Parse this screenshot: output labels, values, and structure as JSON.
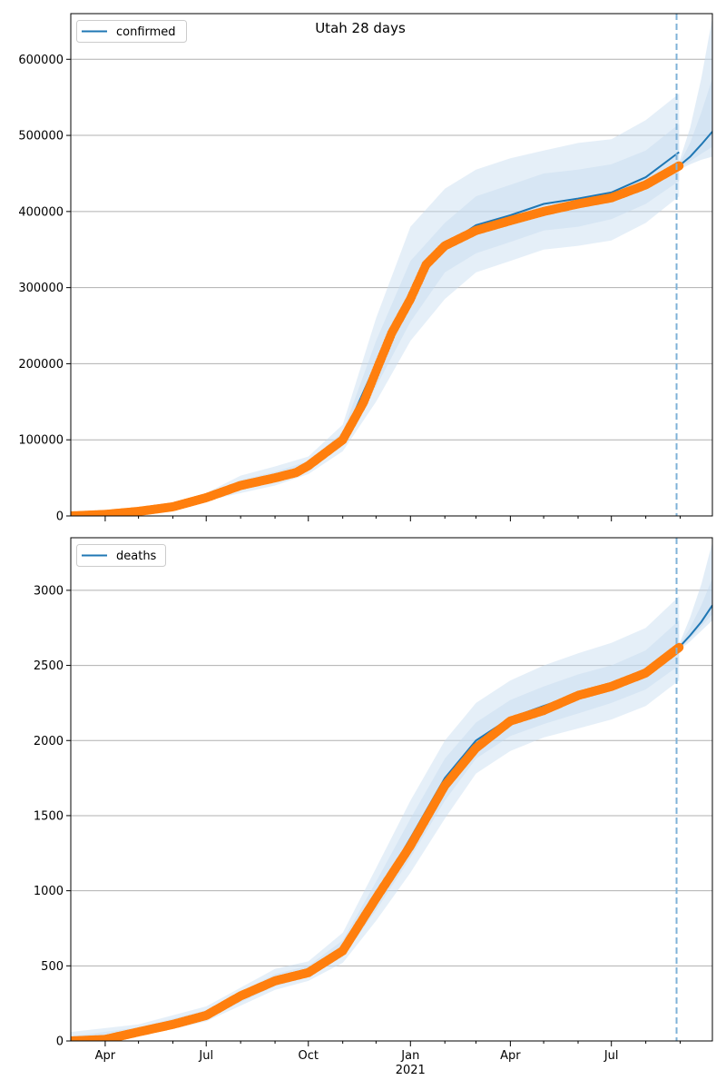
{
  "figure_title": "Utah 28 days",
  "colors": {
    "model_line": "#1f77b4",
    "observed": "#ff7f0e",
    "band": "#c6dbef",
    "grid": "#b0b0b0",
    "today_line": "#7fb2d8"
  },
  "chart_data": [
    {
      "type": "line",
      "legend": "confirmed",
      "legend_position": "top-left",
      "grid": "y",
      "x_tick_labels": [
        "Apr",
        "Jul",
        "Oct",
        "Jan",
        "Apr",
        "Jul"
      ],
      "x_year_label": "2021",
      "x_range": [
        "2020-03-01",
        "2021-09-30"
      ],
      "forecast_start": "2021-09-01",
      "ylim": [
        0,
        660000
      ],
      "yticks": [
        0,
        100000,
        200000,
        300000,
        400000,
        500000,
        600000
      ],
      "observed": [
        [
          "2020-03-01",
          0
        ],
        [
          "2020-04-01",
          2000
        ],
        [
          "2020-05-01",
          6000
        ],
        [
          "2020-06-01",
          12000
        ],
        [
          "2020-07-01",
          24000
        ],
        [
          "2020-08-01",
          40000
        ],
        [
          "2020-09-01",
          50000
        ],
        [
          "2020-09-20",
          57000
        ],
        [
          "2020-10-01",
          66000
        ],
        [
          "2020-11-01",
          100000
        ],
        [
          "2020-11-20",
          150000
        ],
        [
          "2020-12-01",
          190000
        ],
        [
          "2020-12-15",
          240000
        ],
        [
          "2021-01-01",
          285000
        ],
        [
          "2021-01-15",
          330000
        ],
        [
          "2021-02-01",
          355000
        ],
        [
          "2021-03-01",
          375000
        ],
        [
          "2021-04-01",
          388000
        ],
        [
          "2021-05-01",
          400000
        ],
        [
          "2021-06-01",
          410000
        ],
        [
          "2021-07-01",
          418000
        ],
        [
          "2021-08-01",
          435000
        ],
        [
          "2021-08-31",
          460000
        ]
      ],
      "model": [
        [
          "2020-03-01",
          0
        ],
        [
          "2020-04-01",
          2000
        ],
        [
          "2020-05-01",
          6000
        ],
        [
          "2020-06-01",
          13000
        ],
        [
          "2020-07-01",
          25000
        ],
        [
          "2020-08-01",
          40000
        ],
        [
          "2020-09-01",
          51000
        ],
        [
          "2020-10-01",
          66000
        ],
        [
          "2020-11-01",
          102000
        ],
        [
          "2020-12-01",
          200000
        ],
        [
          "2021-01-01",
          295000
        ],
        [
          "2021-02-01",
          355000
        ],
        [
          "2021-03-01",
          382000
        ],
        [
          "2021-04-01",
          395000
        ],
        [
          "2021-05-01",
          410000
        ],
        [
          "2021-06-01",
          417000
        ],
        [
          "2021-07-01",
          425000
        ],
        [
          "2021-08-01",
          445000
        ],
        [
          "2021-08-31",
          478000
        ]
      ],
      "forecast": [
        [
          "2021-08-31",
          460000
        ],
        [
          "2021-09-10",
          472000
        ],
        [
          "2021-09-20",
          488000
        ],
        [
          "2021-09-30",
          505000
        ]
      ],
      "bands": [
        {
          "upper": [
            [
              "2020-07-01",
              30000
            ],
            [
              "2020-08-01",
              53000
            ],
            [
              "2020-09-01",
              65000
            ],
            [
              "2020-10-01",
              78000
            ],
            [
              "2020-11-01",
              120000
            ],
            [
              "2020-12-01",
              260000
            ],
            [
              "2021-01-01",
              380000
            ],
            [
              "2021-02-01",
              430000
            ],
            [
              "2021-03-01",
              455000
            ],
            [
              "2021-04-01",
              470000
            ],
            [
              "2021-05-01",
              480000
            ],
            [
              "2021-06-01",
              490000
            ],
            [
              "2021-07-01",
              495000
            ],
            [
              "2021-08-01",
              520000
            ],
            [
              "2021-08-31",
              555000
            ]
          ],
          "lower": [
            [
              "2020-07-01",
              20000
            ],
            [
              "2020-08-01",
              30000
            ],
            [
              "2020-09-01",
              40000
            ],
            [
              "2020-10-01",
              55000
            ],
            [
              "2020-11-01",
              85000
            ],
            [
              "2020-12-01",
              150000
            ],
            [
              "2021-01-01",
              230000
            ],
            [
              "2021-02-01",
              285000
            ],
            [
              "2021-03-01",
              320000
            ],
            [
              "2021-04-01",
              335000
            ],
            [
              "2021-05-01",
              350000
            ],
            [
              "2021-06-01",
              355000
            ],
            [
              "2021-07-01",
              362000
            ],
            [
              "2021-08-01",
              385000
            ],
            [
              "2021-08-31",
              420000
            ]
          ]
        },
        {
          "upper": [
            [
              "2020-07-01",
              28000
            ],
            [
              "2020-08-01",
              47000
            ],
            [
              "2020-09-01",
              58000
            ],
            [
              "2020-10-01",
              72000
            ],
            [
              "2020-11-01",
              110000
            ],
            [
              "2020-12-01",
              230000
            ],
            [
              "2021-01-01",
              335000
            ],
            [
              "2021-02-01",
              385000
            ],
            [
              "2021-03-01",
              420000
            ],
            [
              "2021-04-01",
              435000
            ],
            [
              "2021-05-01",
              450000
            ],
            [
              "2021-06-01",
              455000
            ],
            [
              "2021-07-01",
              462000
            ],
            [
              "2021-08-01",
              480000
            ],
            [
              "2021-08-31",
              515000
            ]
          ],
          "lower": [
            [
              "2020-07-01",
              22000
            ],
            [
              "2020-08-01",
              35000
            ],
            [
              "2020-09-01",
              45000
            ],
            [
              "2020-10-01",
              60000
            ],
            [
              "2020-11-01",
              92000
            ],
            [
              "2020-12-01",
              170000
            ],
            [
              "2021-01-01",
              255000
            ],
            [
              "2021-02-01",
              320000
            ],
            [
              "2021-03-01",
              345000
            ],
            [
              "2021-04-01",
              360000
            ],
            [
              "2021-05-01",
              375000
            ],
            [
              "2021-06-01",
              380000
            ],
            [
              "2021-07-01",
              390000
            ],
            [
              "2021-08-01",
              410000
            ],
            [
              "2021-08-31",
              440000
            ]
          ]
        }
      ],
      "forecast_bands": [
        {
          "upper": [
            [
              "2021-08-31",
              465000
            ],
            [
              "2021-09-10",
              510000
            ],
            [
              "2021-09-20",
              575000
            ],
            [
              "2021-09-30",
              655000
            ]
          ],
          "lower": [
            [
              "2021-08-31",
              455000
            ],
            [
              "2021-09-10",
              462000
            ],
            [
              "2021-09-20",
              468000
            ],
            [
              "2021-09-30",
              472000
            ]
          ]
        },
        {
          "upper": [
            [
              "2021-08-31",
              462000
            ],
            [
              "2021-09-10",
              490000
            ],
            [
              "2021-09-20",
              530000
            ],
            [
              "2021-09-30",
              575000
            ]
          ],
          "lower": [
            [
              "2021-08-31",
              457000
            ],
            [
              "2021-09-10",
              466000
            ],
            [
              "2021-09-20",
              476000
            ],
            [
              "2021-09-30",
              485000
            ]
          ]
        }
      ]
    },
    {
      "type": "line",
      "legend": "deaths",
      "legend_position": "top-left",
      "grid": "y",
      "x_tick_labels": [
        "Apr",
        "Jul",
        "Oct",
        "Jan",
        "Apr",
        "Jul"
      ],
      "x_year_label": "2021",
      "x_range": [
        "2020-03-01",
        "2021-09-30"
      ],
      "forecast_start": "2021-09-01",
      "ylim": [
        0,
        3350
      ],
      "yticks": [
        0,
        500,
        1000,
        1500,
        2000,
        2500,
        3000
      ],
      "observed": [
        [
          "2020-03-01",
          0
        ],
        [
          "2020-04-01",
          10
        ],
        [
          "2020-05-01",
          60
        ],
        [
          "2020-06-01",
          110
        ],
        [
          "2020-07-01",
          170
        ],
        [
          "2020-08-01",
          300
        ],
        [
          "2020-09-01",
          400
        ],
        [
          "2020-10-01",
          455
        ],
        [
          "2020-11-01",
          600
        ],
        [
          "2020-12-01",
          950
        ],
        [
          "2021-01-01",
          1300
        ],
        [
          "2021-02-01",
          1700
        ],
        [
          "2021-03-01",
          1950
        ],
        [
          "2021-04-01",
          2130
        ],
        [
          "2021-05-01",
          2200
        ],
        [
          "2021-06-01",
          2300
        ],
        [
          "2021-07-01",
          2360
        ],
        [
          "2021-08-01",
          2450
        ],
        [
          "2021-08-31",
          2620
        ]
      ],
      "model": [
        [
          "2020-03-01",
          0
        ],
        [
          "2020-04-01",
          15
        ],
        [
          "2020-05-01",
          65
        ],
        [
          "2020-06-01",
          115
        ],
        [
          "2020-07-01",
          175
        ],
        [
          "2020-08-01",
          305
        ],
        [
          "2020-09-01",
          405
        ],
        [
          "2020-10-01",
          460
        ],
        [
          "2020-11-01",
          610
        ],
        [
          "2020-12-01",
          960
        ],
        [
          "2021-01-01",
          1350
        ],
        [
          "2021-02-01",
          1750
        ],
        [
          "2021-03-01",
          2000
        ],
        [
          "2021-04-01",
          2150
        ],
        [
          "2021-05-01",
          2230
        ],
        [
          "2021-06-01",
          2310
        ],
        [
          "2021-07-01",
          2380
        ],
        [
          "2021-08-01",
          2470
        ],
        [
          "2021-08-31",
          2640
        ]
      ],
      "forecast": [
        [
          "2021-08-31",
          2620
        ],
        [
          "2021-09-10",
          2700
        ],
        [
          "2021-09-20",
          2790
        ],
        [
          "2021-09-30",
          2900
        ]
      ],
      "bands": [
        {
          "upper": [
            [
              "2020-03-01",
              60
            ],
            [
              "2020-05-01",
              110
            ],
            [
              "2020-07-01",
              230
            ],
            [
              "2020-09-01",
              480
            ],
            [
              "2020-10-01",
              530
            ],
            [
              "2020-11-01",
              720
            ],
            [
              "2020-12-01",
              1150
            ],
            [
              "2021-01-01",
              1600
            ],
            [
              "2021-02-01",
              2000
            ],
            [
              "2021-03-01",
              2250
            ],
            [
              "2021-04-01",
              2400
            ],
            [
              "2021-05-01",
              2500
            ],
            [
              "2021-06-01",
              2580
            ],
            [
              "2021-07-01",
              2650
            ],
            [
              "2021-08-01",
              2750
            ],
            [
              "2021-08-31",
              2960
            ]
          ],
          "lower": [
            [
              "2020-03-01",
              0
            ],
            [
              "2020-05-01",
              30
            ],
            [
              "2020-07-01",
              130
            ],
            [
              "2020-09-01",
              340
            ],
            [
              "2020-10-01",
              400
            ],
            [
              "2020-11-01",
              520
            ],
            [
              "2020-12-01",
              800
            ],
            [
              "2021-01-01",
              1120
            ],
            [
              "2021-02-01",
              1480
            ],
            [
              "2021-03-01",
              1780
            ],
            [
              "2021-04-01",
              1930
            ],
            [
              "2021-05-01",
              2020
            ],
            [
              "2021-06-01",
              2080
            ],
            [
              "2021-07-01",
              2140
            ],
            [
              "2021-08-01",
              2230
            ],
            [
              "2021-08-31",
              2400
            ]
          ]
        },
        {
          "upper": [
            [
              "2020-03-01",
              30
            ],
            [
              "2020-05-01",
              90
            ],
            [
              "2020-07-01",
              205
            ],
            [
              "2020-09-01",
              445
            ],
            [
              "2020-10-01",
              500
            ],
            [
              "2020-11-01",
              670
            ],
            [
              "2020-12-01",
              1060
            ],
            [
              "2021-01-01",
              1480
            ],
            [
              "2021-02-01",
              1880
            ],
            [
              "2021-03-01",
              2120
            ],
            [
              "2021-04-01",
              2270
            ],
            [
              "2021-05-01",
              2360
            ],
            [
              "2021-06-01",
              2440
            ],
            [
              "2021-07-01",
              2500
            ],
            [
              "2021-08-01",
              2600
            ],
            [
              "2021-08-31",
              2800
            ]
          ],
          "lower": [
            [
              "2020-03-01",
              0
            ],
            [
              "2020-05-01",
              45
            ],
            [
              "2020-07-01",
              150
            ],
            [
              "2020-09-01",
              365
            ],
            [
              "2020-10-01",
              425
            ],
            [
              "2020-11-01",
              560
            ],
            [
              "2020-12-01",
              870
            ],
            [
              "2021-01-01",
              1220
            ],
            [
              "2021-02-01",
              1600
            ],
            [
              "2021-03-01",
              1880
            ],
            [
              "2021-04-01",
              2030
            ],
            [
              "2021-05-01",
              2110
            ],
            [
              "2021-06-01",
              2180
            ],
            [
              "2021-07-01",
              2250
            ],
            [
              "2021-08-01",
              2340
            ],
            [
              "2021-08-31",
              2500
            ]
          ]
        }
      ],
      "forecast_bands": [
        {
          "upper": [
            [
              "2021-08-31",
              2640
            ],
            [
              "2021-09-10",
              2820
            ],
            [
              "2021-09-20",
              3040
            ],
            [
              "2021-09-30",
              3320
            ]
          ],
          "lower": [
            [
              "2021-08-31",
              2600
            ],
            [
              "2021-09-10",
              2660
            ],
            [
              "2021-09-20",
              2730
            ],
            [
              "2021-09-30",
              2800
            ]
          ]
        },
        {
          "upper": [
            [
              "2021-08-31",
              2630
            ],
            [
              "2021-09-10",
              2750
            ],
            [
              "2021-09-20",
              2900
            ],
            [
              "2021-09-30",
              3080
            ]
          ],
          "lower": [
            [
              "2021-08-31",
              2610
            ],
            [
              "2021-09-10",
              2680
            ],
            [
              "2021-09-20",
              2760
            ],
            [
              "2021-09-30",
              2840
            ]
          ]
        }
      ]
    }
  ]
}
